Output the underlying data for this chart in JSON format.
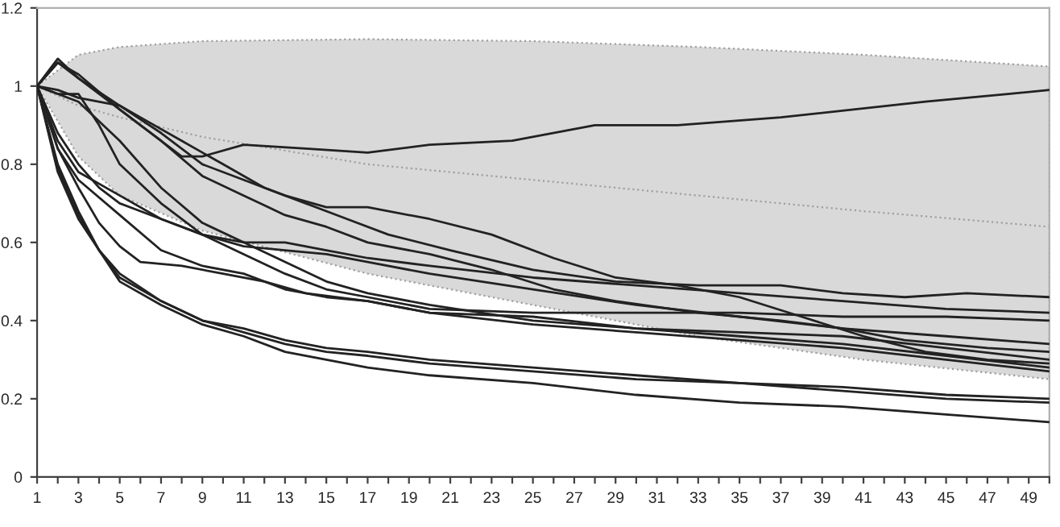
{
  "chart_data": {
    "type": "line",
    "xlim": [
      1,
      50
    ],
    "ylim": [
      0,
      1.2
    ],
    "yticks": [
      0,
      0.2,
      0.4,
      0.6,
      0.8,
      1,
      1.2
    ],
    "xticks": [
      1,
      {
        "value": 2,
        "label": null
      },
      3,
      {
        "value": 4,
        "label": null
      },
      5,
      {
        "value": 6,
        "label": null
      },
      7,
      {
        "value": 8,
        "label": null
      },
      9,
      {
        "value": 10,
        "label": null
      },
      11,
      {
        "value": 12,
        "label": null
      },
      13,
      {
        "value": 14,
        "label": null
      },
      15,
      {
        "value": 16,
        "label": null
      },
      17,
      {
        "value": 18,
        "label": null
      },
      19,
      {
        "value": 20,
        "label": null
      },
      21,
      {
        "value": 22,
        "label": null
      },
      23,
      {
        "value": 24,
        "label": null
      },
      25,
      {
        "value": 26,
        "label": null
      },
      27,
      {
        "value": 28,
        "label": null
      },
      29,
      {
        "value": 30,
        "label": null
      },
      31,
      {
        "value": 32,
        "label": null
      },
      33,
      {
        "value": 34,
        "label": null
      },
      35,
      {
        "value": 36,
        "label": null
      },
      37,
      {
        "value": 38,
        "label": null
      },
      39,
      {
        "value": 40,
        "label": null
      },
      41,
      {
        "value": 42,
        "label": null
      },
      43,
      {
        "value": 44,
        "label": null
      },
      45,
      {
        "value": 46,
        "label": null
      },
      47,
      {
        "value": 48,
        "label": null
      },
      49,
      {
        "value": 50,
        "label": null
      }
    ],
    "grid": false,
    "legend": false,
    "marker": "none",
    "line_style": "solid",
    "series": [
      {
        "color": "#a0a0a0",
        "line_style": "dotted",
        "x": [
          1,
          3,
          5,
          9,
          17,
          25,
          33,
          41,
          50
        ],
        "values": [
          1,
          0.95,
          0.92,
          0.87,
          0.8,
          0.76,
          0.72,
          0.68,
          0.64
        ],
        "lower": [
          1,
          0.82,
          0.72,
          0.63,
          0.52,
          0.44,
          0.36,
          0.3,
          0.25
        ],
        "upper": [
          1,
          1.08,
          1.1,
          1.115,
          1.12,
          1.115,
          1.1,
          1.08,
          1.05
        ]
      },
      {
        "color": "#222222",
        "x": [
          1,
          2,
          3,
          5,
          8,
          9,
          11,
          14,
          17,
          20,
          24,
          28,
          32,
          37,
          44,
          48,
          50
        ],
        "values": [
          1,
          1.06,
          1.03,
          0.94,
          0.82,
          0.82,
          0.85,
          0.84,
          0.83,
          0.85,
          0.86,
          0.9,
          0.9,
          0.92,
          0.96,
          0.98,
          0.99
        ]
      },
      {
        "color": "#222222",
        "x": [
          1,
          2,
          3,
          5,
          7,
          9,
          11,
          13,
          15,
          17,
          20,
          23,
          26,
          29,
          32,
          35,
          38,
          41,
          44,
          47,
          50
        ],
        "values": [
          1,
          1.07,
          1.02,
          0.95,
          0.88,
          0.8,
          0.76,
          0.72,
          0.69,
          0.69,
          0.66,
          0.62,
          0.56,
          0.51,
          0.49,
          0.46,
          0.41,
          0.36,
          0.32,
          0.3,
          0.29
        ]
      },
      {
        "color": "#222222",
        "x": [
          1,
          2,
          3,
          5,
          6,
          8,
          10,
          12,
          14,
          16,
          18,
          21,
          25,
          29,
          33,
          37,
          40,
          43,
          46,
          50
        ],
        "values": [
          1,
          0.99,
          0.97,
          0.95,
          0.92,
          0.86,
          0.8,
          0.74,
          0.7,
          0.66,
          0.62,
          0.58,
          0.53,
          0.5,
          0.49,
          0.49,
          0.47,
          0.46,
          0.47,
          0.46
        ]
      },
      {
        "color": "#222222",
        "x": [
          1,
          2,
          3,
          5,
          7,
          9,
          11,
          13,
          15,
          17,
          20,
          23,
          26,
          29,
          33,
          37,
          40,
          43,
          47,
          50
        ],
        "values": [
          1,
          1.06,
          1.02,
          0.94,
          0.86,
          0.77,
          0.72,
          0.67,
          0.64,
          0.6,
          0.57,
          0.53,
          0.48,
          0.45,
          0.42,
          0.4,
          0.38,
          0.35,
          0.33,
          0.32
        ]
      },
      {
        "color": "#222222",
        "x": [
          1,
          2,
          3,
          4,
          5,
          7,
          9,
          11,
          13,
          15,
          17,
          20,
          25,
          30,
          35,
          40,
          45,
          50
        ],
        "values": [
          1,
          0.98,
          0.98,
          0.9,
          0.8,
          0.7,
          0.62,
          0.57,
          0.52,
          0.48,
          0.46,
          0.43,
          0.42,
          0.42,
          0.42,
          0.41,
          0.41,
          0.4
        ]
      },
      {
        "color": "#222222",
        "x": [
          1,
          3,
          5,
          7,
          9,
          11,
          13,
          15,
          17,
          20,
          25,
          30,
          35,
          40,
          45,
          50
        ],
        "values": [
          1,
          0.96,
          0.86,
          0.74,
          0.65,
          0.6,
          0.55,
          0.5,
          0.47,
          0.44,
          0.4,
          0.38,
          0.37,
          0.36,
          0.33,
          0.3
        ]
      },
      {
        "color": "#222222",
        "x": [
          1,
          2,
          3,
          4,
          5,
          7,
          9,
          11,
          13,
          15,
          17,
          20,
          25,
          30,
          35,
          40,
          45,
          50
        ],
        "values": [
          1,
          0.88,
          0.8,
          0.74,
          0.7,
          0.66,
          0.62,
          0.6,
          0.6,
          0.58,
          0.56,
          0.54,
          0.51,
          0.49,
          0.47,
          0.45,
          0.43,
          0.42
        ]
      },
      {
        "color": "#222222",
        "x": [
          1,
          2,
          3,
          5,
          7,
          9,
          11,
          13,
          15,
          17,
          20,
          25,
          30,
          35,
          40,
          45,
          50
        ],
        "values": [
          1,
          0.86,
          0.78,
          0.72,
          0.66,
          0.62,
          0.59,
          0.58,
          0.57,
          0.55,
          0.52,
          0.48,
          0.44,
          0.41,
          0.38,
          0.36,
          0.34
        ]
      },
      {
        "color": "#222222",
        "x": [
          1,
          2,
          3,
          5,
          7,
          9,
          11,
          13,
          15,
          17,
          20,
          25,
          30,
          35,
          40,
          45,
          50
        ],
        "values": [
          1,
          0.84,
          0.76,
          0.67,
          0.58,
          0.54,
          0.52,
          0.48,
          0.46,
          0.45,
          0.42,
          0.41,
          0.38,
          0.36,
          0.34,
          0.31,
          0.28
        ]
      },
      {
        "color": "#222222",
        "x": [
          1,
          2,
          3,
          4,
          5,
          6,
          8,
          10,
          12,
          14,
          17,
          20,
          25,
          30,
          35,
          40,
          45,
          50
        ],
        "values": [
          1,
          0.84,
          0.74,
          0.65,
          0.59,
          0.55,
          0.54,
          0.52,
          0.5,
          0.47,
          0.45,
          0.42,
          0.39,
          0.37,
          0.35,
          0.33,
          0.3,
          0.27
        ]
      },
      {
        "color": "#222222",
        "x": [
          1,
          2,
          3,
          4,
          5,
          7,
          9,
          11,
          13,
          15,
          17,
          20,
          25,
          30,
          35,
          40,
          45,
          50
        ],
        "values": [
          1,
          0.79,
          0.67,
          0.58,
          0.52,
          0.45,
          0.4,
          0.38,
          0.35,
          0.33,
          0.32,
          0.3,
          0.28,
          0.26,
          0.24,
          0.23,
          0.21,
          0.2
        ]
      },
      {
        "color": "#222222",
        "x": [
          1,
          2,
          3,
          4,
          5,
          7,
          9,
          11,
          13,
          15,
          17,
          20,
          25,
          30,
          35,
          40,
          45,
          50
        ],
        "values": [
          1,
          0.8,
          0.68,
          0.58,
          0.51,
          0.45,
          0.4,
          0.37,
          0.34,
          0.32,
          0.31,
          0.29,
          0.27,
          0.25,
          0.24,
          0.22,
          0.2,
          0.19
        ]
      },
      {
        "color": "#222222",
        "x": [
          1,
          2,
          3,
          4,
          5,
          7,
          9,
          11,
          13,
          15,
          17,
          20,
          25,
          30,
          35,
          40,
          45,
          50
        ],
        "values": [
          1,
          0.78,
          0.66,
          0.58,
          0.5,
          0.44,
          0.39,
          0.36,
          0.32,
          0.3,
          0.28,
          0.26,
          0.24,
          0.21,
          0.19,
          0.18,
          0.16,
          0.14
        ]
      }
    ]
  }
}
